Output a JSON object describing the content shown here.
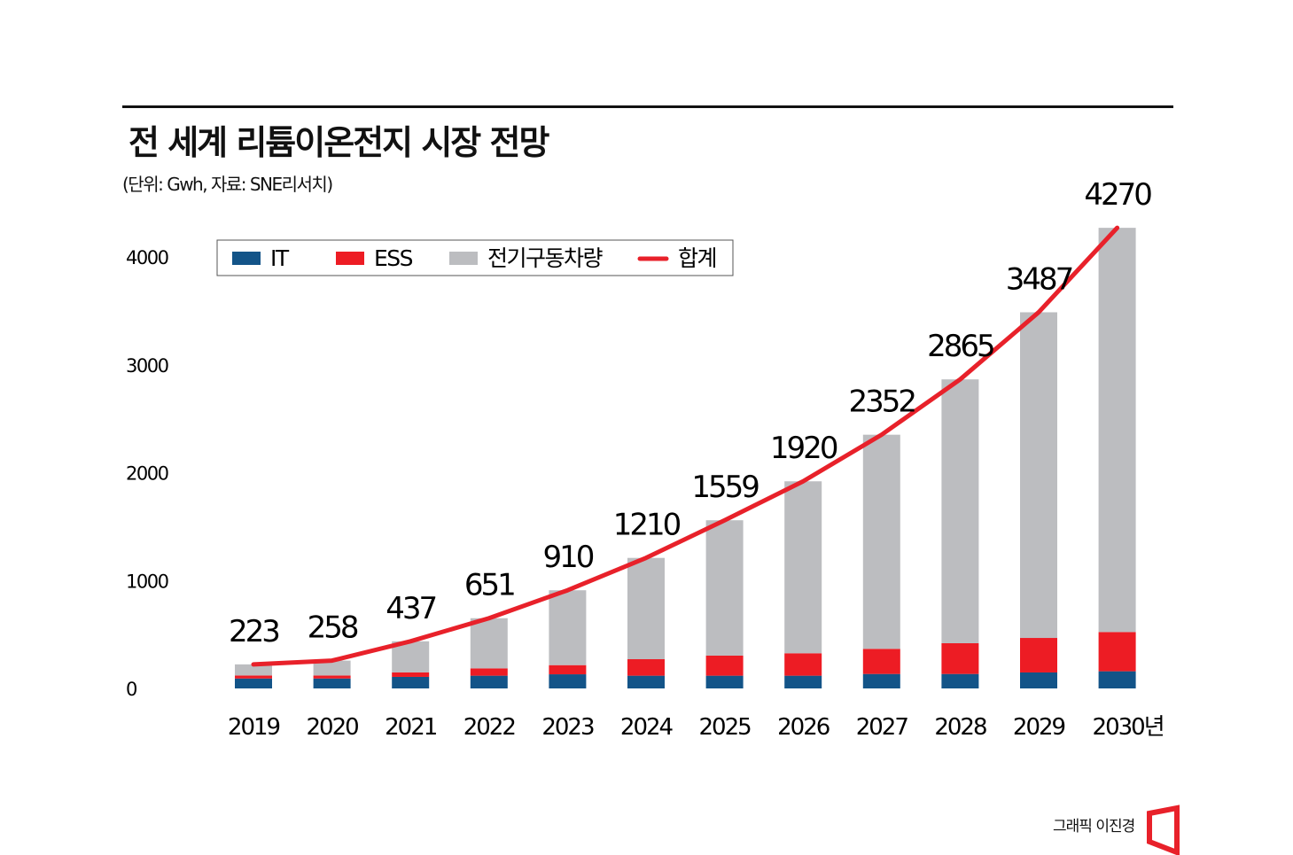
{
  "title": "전 세계 리튬이온전지 시장 전망",
  "subtitle": "(단위: Gwh, 자료: SNE리서치)",
  "credit": "그래픽 이진경",
  "colors": {
    "IT": "#135488",
    "ESS": "#ed1c24",
    "EV": "#bcbdc0",
    "total": "#e8212a"
  },
  "chart_data": {
    "type": "bar",
    "stacked": true,
    "categories": [
      "2019",
      "2020",
      "2021",
      "2022",
      "2023",
      "2024",
      "2025",
      "2026",
      "2027",
      "2028",
      "2029",
      "2030년"
    ],
    "series": [
      {
        "name": "IT",
        "values": [
          92,
          92,
          107,
          118,
          131,
          118,
          118,
          118,
          134,
          134,
          148,
          159
        ]
      },
      {
        "name": "ESS",
        "values": [
          28,
          28,
          41,
          68,
          85,
          153,
          186,
          208,
          233,
          285,
          320,
          364
        ]
      },
      {
        "name": "전기구동차량",
        "values": [
          103,
          138,
          289,
          465,
          694,
          939,
          1255,
          1594,
          1985,
          2446,
          3019,
          3747
        ]
      }
    ],
    "line": {
      "name": "합계",
      "type": "line",
      "values": [
        223,
        258,
        437,
        651,
        910,
        1210,
        1559,
        1920,
        2352,
        2865,
        3487,
        4270
      ]
    },
    "yticks": [
      "0",
      "1000",
      "2000",
      "3000",
      "4000"
    ],
    "ylim": [
      0,
      4400
    ],
    "grid": false,
    "legend": "top-left"
  }
}
